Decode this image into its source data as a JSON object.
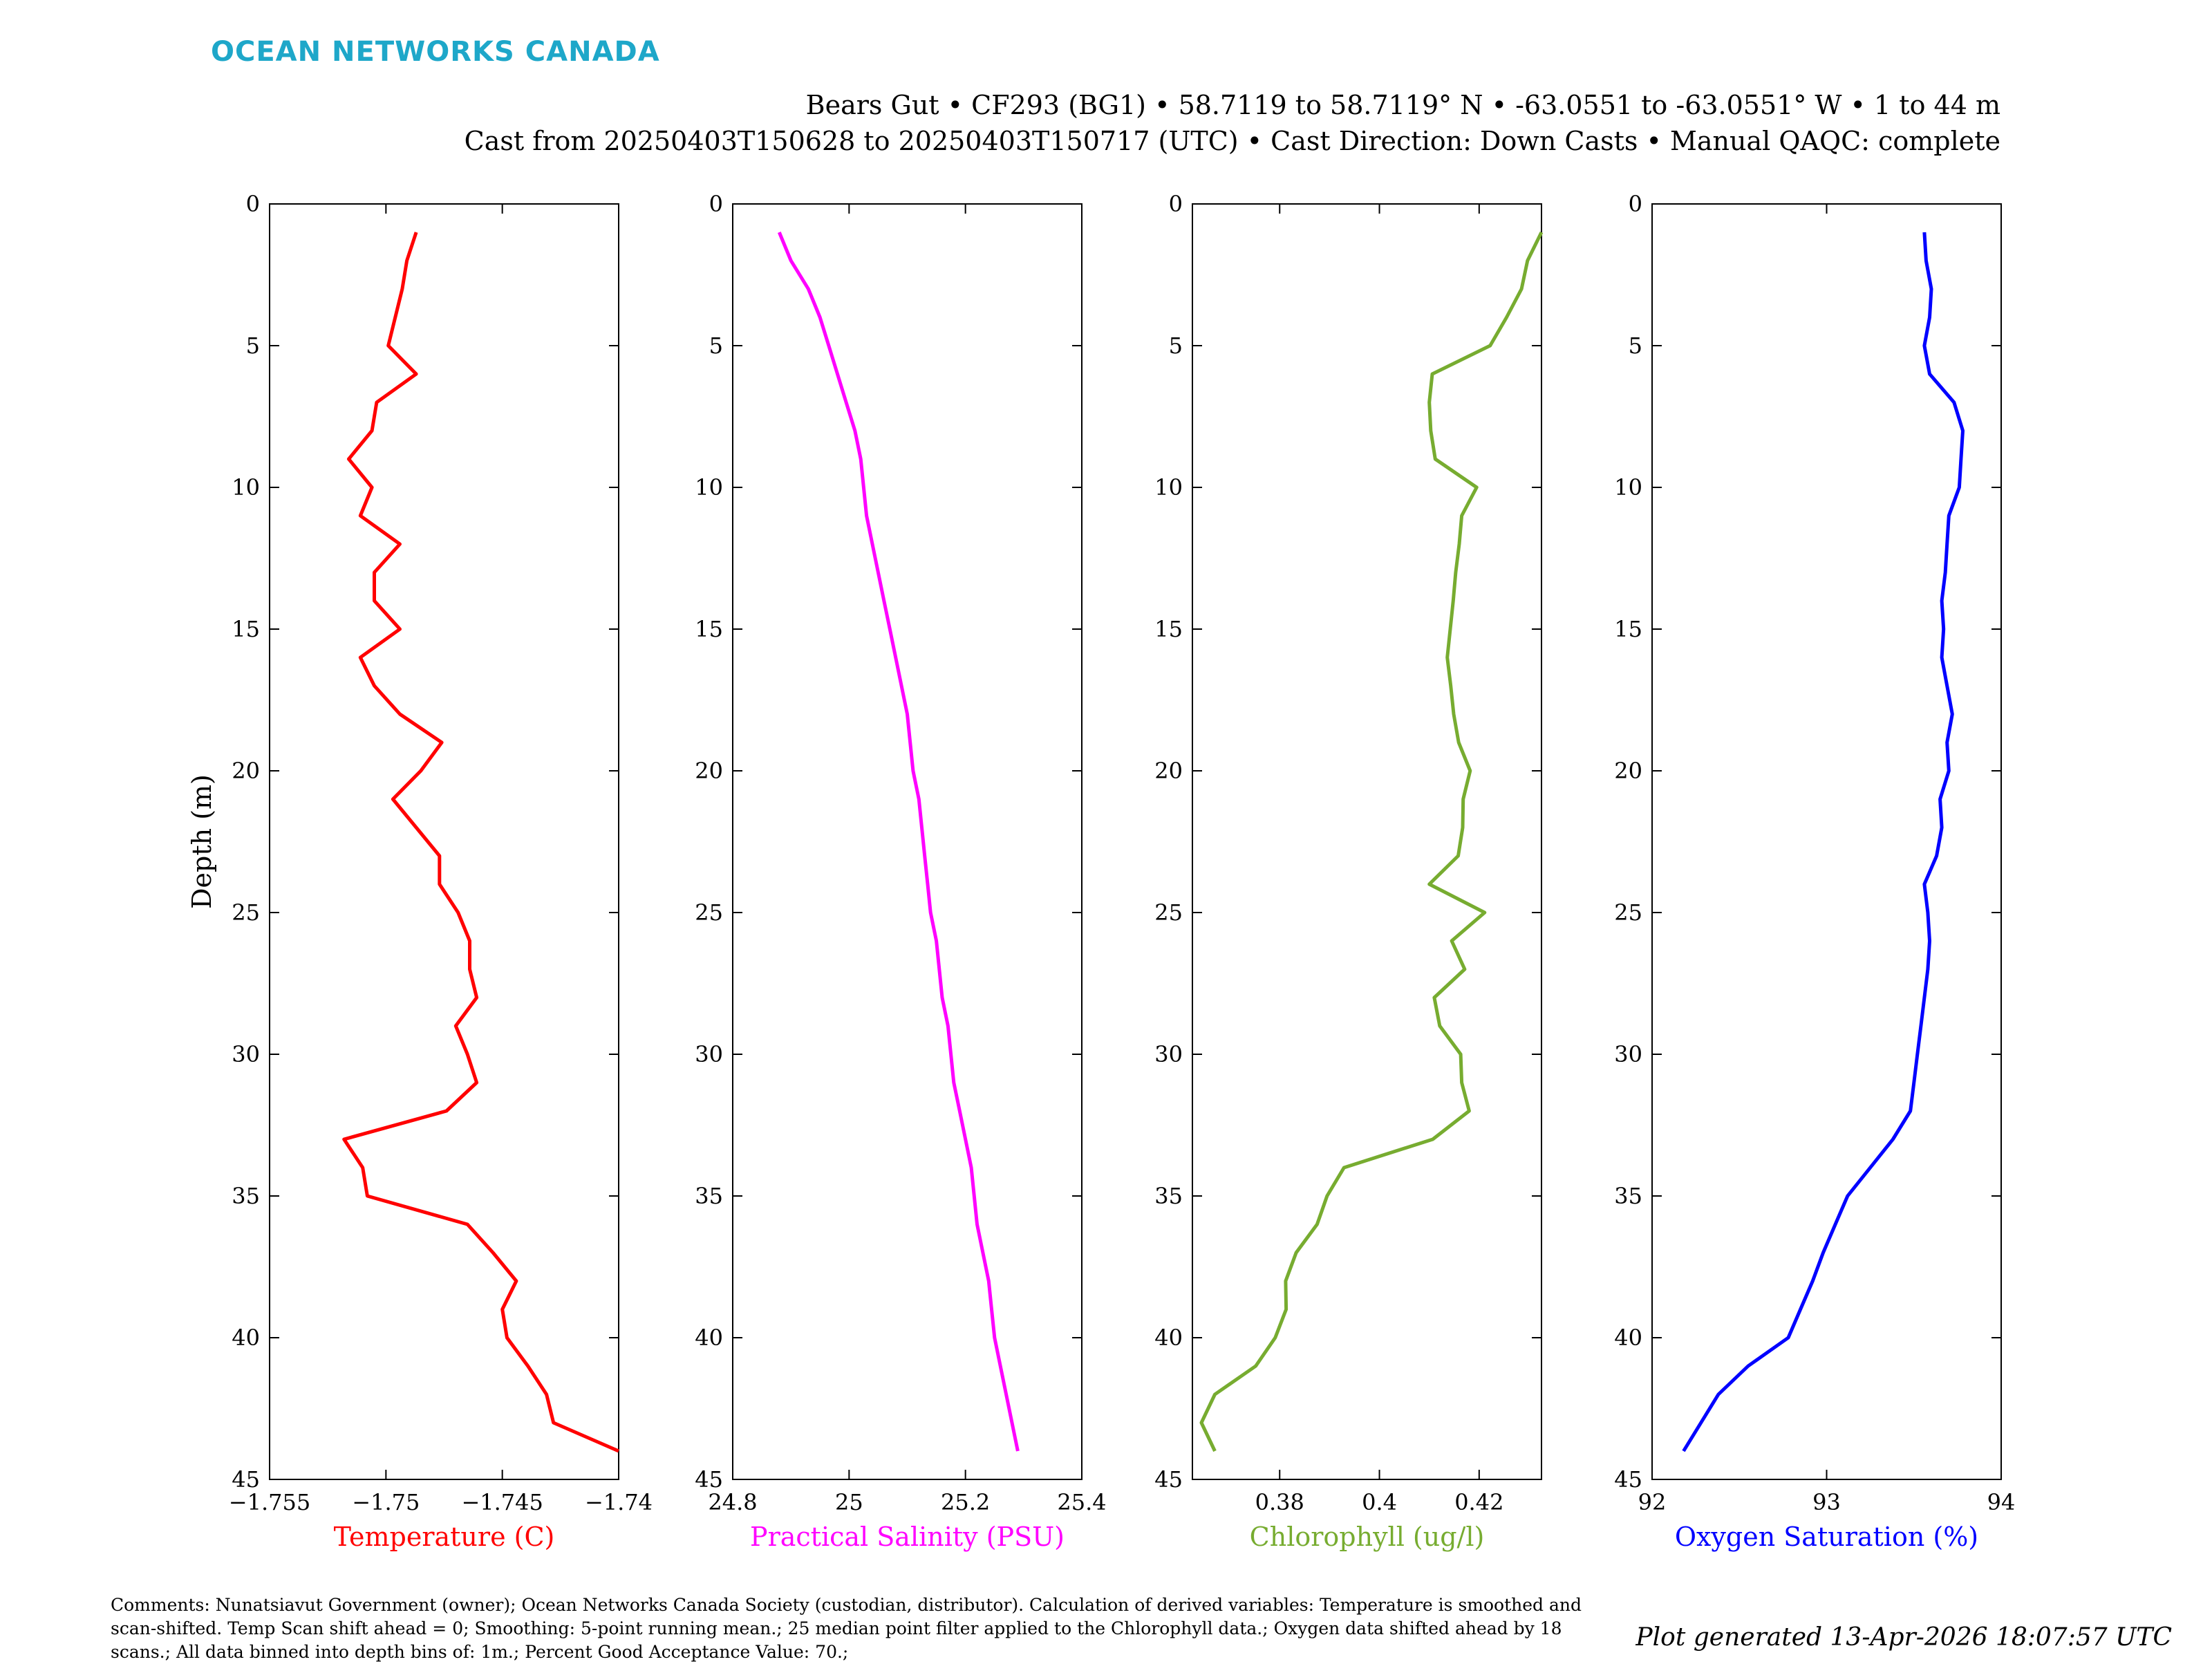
{
  "header": {
    "logo": "OCEAN NETWORKS CANADA",
    "line1": "Bears Gut • CF293 (BG1) • 58.7119 to 58.7119° N • -63.0551 to -63.0551° W • 1 to 44 m",
    "line2": "Cast from 20250403T150628 to 20250403T150717 (UTC) • Cast Direction: Down Casts • Manual QAQC: complete"
  },
  "footer": {
    "comments": "Comments: Nunatsiavut Government (owner); Ocean Networks Canada Society (custodian, distributor). Calculation of derived variables: Temperature is smoothed and scan-shifted. Temp Scan shift ahead = 0; Smoothing: 5-point running mean.; 25 median point filter applied to the Chlorophyll data.; Oxygen data shifted ahead by 18 scans.; All data binned into depth bins of: 1m.; Percent Good Acceptance Value: 70.;",
    "generated": "Plot generated 13-Apr-2026 18:07:57 UTC"
  },
  "chart_data": [
    {
      "type": "line",
      "xlabel": "Temperature (C)",
      "ylabel": "Depth (m)",
      "color": "#ff0000",
      "xlim": [
        -1.755,
        -1.74
      ],
      "ylim": [
        45,
        0
      ],
      "xticks": [
        -1.755,
        -1.75,
        -1.745,
        -1.74
      ],
      "xtick_labels": [
        "−1.755",
        "−1.75",
        "−1.745",
        "−1.74"
      ],
      "yticks": [
        0,
        5,
        10,
        15,
        20,
        25,
        30,
        35,
        40,
        45
      ],
      "ytick_labels": [
        "0",
        "5",
        "10",
        "15",
        "20",
        "25",
        "30",
        "35",
        "40",
        "45"
      ],
      "depth": [
        1,
        2,
        3,
        4,
        5,
        6,
        7,
        8,
        9,
        10,
        11,
        12,
        13,
        14,
        15,
        16,
        17,
        18,
        19,
        20,
        21,
        22,
        23,
        24,
        25,
        26,
        27,
        28,
        29,
        30,
        31,
        32,
        33,
        34,
        35,
        36,
        37,
        38,
        39,
        40,
        41,
        42,
        43,
        44
      ],
      "values": [
        -1.7487,
        -1.7491,
        -1.7493,
        -1.7496,
        -1.7499,
        -1.7487,
        -1.7504,
        -1.7506,
        -1.7516,
        -1.7506,
        -1.7511,
        -1.7494,
        -1.7505,
        -1.7505,
        -1.7494,
        -1.7511,
        -1.7505,
        -1.7494,
        -1.7476,
        -1.7485,
        -1.7497,
        -1.7487,
        -1.7477,
        -1.7477,
        -1.7469,
        -1.7464,
        -1.7464,
        -1.7461,
        -1.747,
        -1.7465,
        -1.7461,
        -1.7474,
        -1.7518,
        -1.751,
        -1.7508,
        -1.7465,
        -1.7454,
        -1.7444,
        -1.745,
        -1.7448,
        -1.7439,
        -1.7431,
        -1.7428,
        -1.74
      ]
    },
    {
      "type": "line",
      "xlabel": "Practical Salinity (PSU)",
      "color": "#ff00ff",
      "xlim": [
        24.8,
        25.4
      ],
      "ylim": [
        45,
        0
      ],
      "xticks": [
        24.8,
        25,
        25.2,
        25.4
      ],
      "xtick_labels": [
        "24.8",
        "25",
        "25.2",
        "25.4"
      ],
      "yticks": [
        0,
        5,
        10,
        15,
        20,
        25,
        30,
        35,
        40,
        45
      ],
      "ytick_labels": [
        "0",
        "5",
        "10",
        "15",
        "20",
        "25",
        "30",
        "35",
        "40",
        "45"
      ],
      "depth": [
        1,
        2,
        3,
        4,
        5,
        6,
        7,
        8,
        9,
        10,
        11,
        12,
        13,
        14,
        15,
        16,
        17,
        18,
        19,
        20,
        21,
        22,
        23,
        24,
        25,
        26,
        27,
        28,
        29,
        30,
        31,
        32,
        33,
        34,
        35,
        36,
        37,
        38,
        39,
        40,
        41,
        42,
        43,
        44
      ],
      "values": [
        24.88,
        24.9,
        24.93,
        24.95,
        24.965,
        24.98,
        24.995,
        25.01,
        25.02,
        25.025,
        25.03,
        25.04,
        25.05,
        25.06,
        25.07,
        25.08,
        25.09,
        25.1,
        25.105,
        25.11,
        25.12,
        25.125,
        25.13,
        25.135,
        25.14,
        25.15,
        25.155,
        25.16,
        25.17,
        25.175,
        25.18,
        25.19,
        25.2,
        25.21,
        25.215,
        25.22,
        25.23,
        25.24,
        25.245,
        25.25,
        25.26,
        25.27,
        25.28,
        25.29
      ]
    },
    {
      "type": "line",
      "xlabel": "Chlorophyll (ug/l)",
      "color": "#77ac30",
      "xlim": [
        0.3625,
        0.4325
      ],
      "ylim": [
        45,
        0
      ],
      "xticks": [
        0.38,
        0.4,
        0.42
      ],
      "xtick_labels": [
        "0.38",
        "0.4",
        "0.42"
      ],
      "yticks": [
        0,
        5,
        10,
        15,
        20,
        25,
        30,
        35,
        40,
        45
      ],
      "ytick_labels": [
        "0",
        "5",
        "10",
        "15",
        "20",
        "25",
        "30",
        "35",
        "40",
        "45"
      ],
      "depth": [
        1,
        2,
        3,
        4,
        5,
        6,
        7,
        8,
        9,
        10,
        11,
        12,
        13,
        14,
        15,
        16,
        17,
        18,
        19,
        20,
        21,
        22,
        23,
        24,
        25,
        26,
        27,
        28,
        29,
        30,
        31,
        32,
        33,
        34,
        35,
        36,
        37,
        38,
        39,
        40,
        41,
        42,
        43,
        44
      ],
      "values": [
        0.4325,
        0.4297,
        0.4285,
        0.4255,
        0.4222,
        0.4106,
        0.41,
        0.4103,
        0.4112,
        0.4195,
        0.4165,
        0.416,
        0.4153,
        0.4148,
        0.4142,
        0.4136,
        0.4143,
        0.4149,
        0.4159,
        0.4182,
        0.4168,
        0.4167,
        0.4158,
        0.41,
        0.4211,
        0.4145,
        0.4171,
        0.411,
        0.4121,
        0.4163,
        0.4165,
        0.418,
        0.4107,
        0.3929,
        0.3895,
        0.3875,
        0.3833,
        0.3812,
        0.3813,
        0.3791,
        0.3752,
        0.367,
        0.3643,
        0.367
      ]
    },
    {
      "type": "line",
      "xlabel": "Oxygen Saturation (%)",
      "color": "#0000ff",
      "xlim": [
        92,
        94
      ],
      "ylim": [
        45,
        0
      ],
      "xticks": [
        92,
        93,
        94
      ],
      "xtick_labels": [
        "92",
        "93",
        "94"
      ],
      "yticks": [
        0,
        5,
        10,
        15,
        20,
        25,
        30,
        35,
        40,
        45
      ],
      "ytick_labels": [
        "0",
        "5",
        "10",
        "15",
        "20",
        "25",
        "30",
        "35",
        "40",
        "45"
      ],
      "depth": [
        1,
        2,
        3,
        4,
        5,
        6,
        7,
        8,
        9,
        10,
        11,
        12,
        13,
        14,
        15,
        16,
        17,
        18,
        19,
        20,
        21,
        22,
        23,
        24,
        25,
        26,
        27,
        28,
        29,
        30,
        31,
        32,
        33,
        34,
        35,
        36,
        37,
        38,
        39,
        40,
        41,
        42,
        43,
        44
      ],
      "values": [
        93.56,
        93.57,
        93.6,
        93.59,
        93.56,
        93.59,
        93.73,
        93.78,
        93.77,
        93.76,
        93.7,
        93.69,
        93.68,
        93.66,
        93.67,
        93.66,
        93.69,
        93.72,
        93.69,
        93.7,
        93.65,
        93.66,
        93.63,
        93.56,
        93.58,
        93.59,
        93.58,
        93.56,
        93.54,
        93.52,
        93.5,
        93.48,
        93.38,
        93.25,
        93.12,
        93.05,
        92.98,
        92.92,
        92.85,
        92.78,
        92.55,
        92.38,
        92.28,
        92.18
      ]
    }
  ]
}
